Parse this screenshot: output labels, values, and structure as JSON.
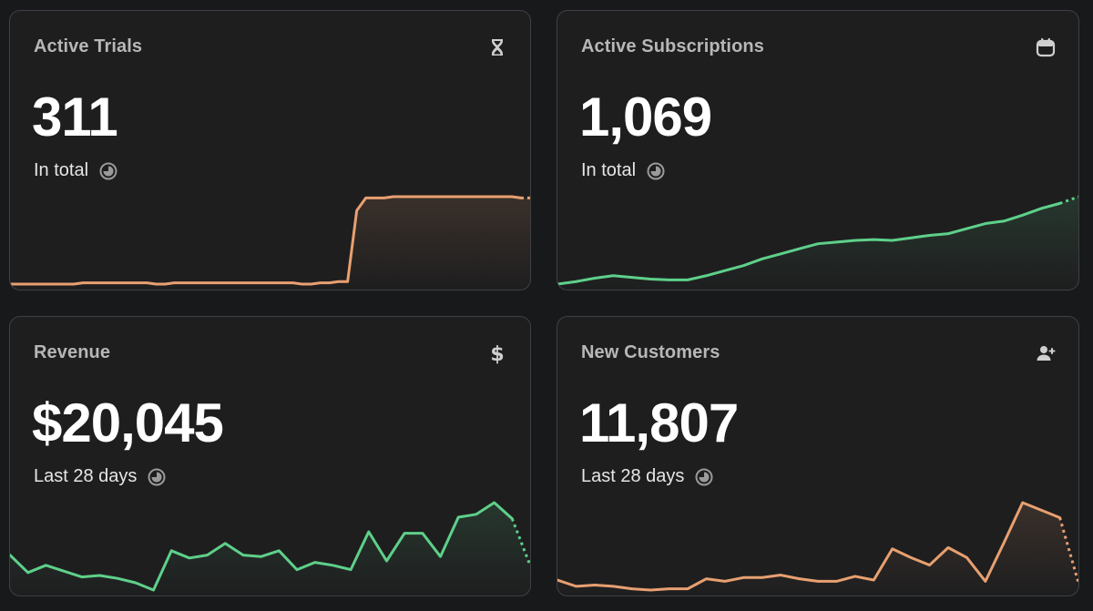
{
  "cards": [
    {
      "title": "Active Trials",
      "value": "311",
      "subtitle": "In total",
      "icon": "hourglass-icon",
      "line_color": "#e8a070",
      "series": [
        2,
        2,
        2,
        2,
        2,
        2,
        2,
        2,
        3,
        3,
        3,
        3,
        3,
        3,
        3,
        3,
        2,
        2,
        3,
        3,
        3,
        3,
        3,
        3,
        3,
        3,
        3,
        3,
        3,
        3,
        3,
        3,
        2,
        2,
        3,
        3,
        4,
        4,
        60,
        70,
        70,
        70,
        71,
        71,
        71,
        71,
        71,
        71,
        71,
        71,
        71,
        71,
        71,
        71,
        71,
        71,
        70,
        70
      ]
    },
    {
      "title": "Active Subscriptions",
      "value": "1,069",
      "subtitle": "In total",
      "icon": "calendar-icon",
      "line_color": "#5ed08a",
      "series": [
        0,
        3,
        7,
        10,
        8,
        6,
        5,
        5,
        10,
        16,
        22,
        30,
        36,
        42,
        48,
        50,
        52,
        53,
        52,
        55,
        58,
        60,
        66,
        72,
        75,
        82,
        90,
        96,
        104
      ]
    },
    {
      "title": "Revenue",
      "value": "$20,045",
      "subtitle": "Last 28 days",
      "icon": "dollar-icon",
      "line_color": "#5ed08a",
      "series": [
        32,
        20,
        25,
        21,
        17,
        18,
        16,
        13,
        8,
        35,
        30,
        32,
        40,
        32,
        31,
        35,
        22,
        27,
        25,
        22,
        48,
        28,
        47,
        47,
        31,
        58,
        60,
        68,
        57,
        25
      ]
    },
    {
      "title": "New Customers",
      "value": "11,807",
      "subtitle": "Last 28 days",
      "icon": "add-user-icon",
      "line_color": "#e8a070",
      "series": [
        10,
        5,
        6,
        5,
        3,
        2,
        3,
        3,
        11,
        9,
        12,
        12,
        14,
        11,
        9,
        9,
        13,
        10,
        35,
        28,
        22,
        36,
        28,
        9,
        40,
        72,
        66,
        60,
        8
      ]
    }
  ]
}
